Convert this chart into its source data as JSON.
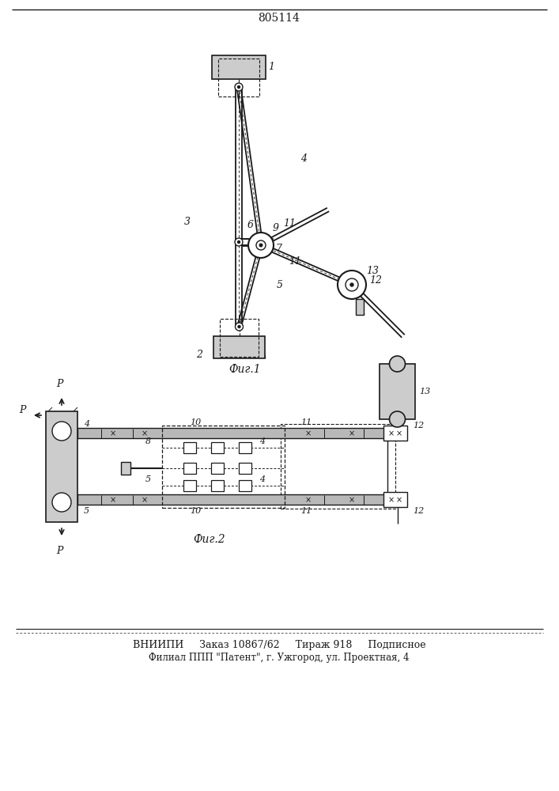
{
  "patent_number": "805114",
  "fig1_caption": "Фиг.1",
  "fig2_caption": "Фиг.2",
  "footer_line1": "ВНИИПИ     Заказ 10867/62     Тираж 918     Подписное",
  "footer_line2": "Филиал ППП \"Патент\", г. Ужгород, ул. Проектная, 4",
  "bg_color": "#ffffff",
  "line_color": "#1a1a1a"
}
